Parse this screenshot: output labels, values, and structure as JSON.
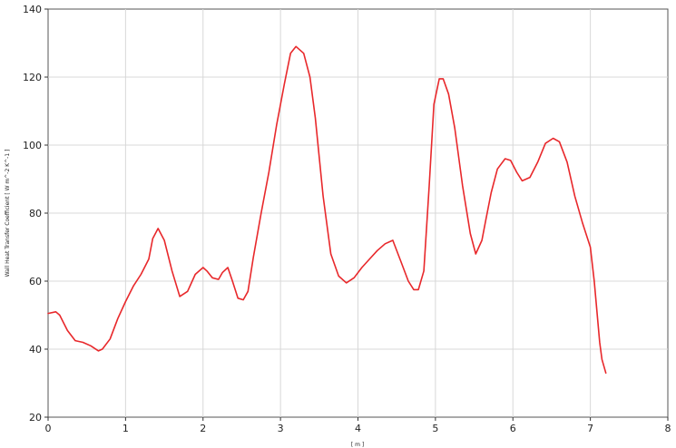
{
  "chart_data": {
    "type": "line",
    "title": "",
    "xlabel": "[ m ]",
    "ylabel": "Wall Heat Transfer Coefficient [ W m^-2 K^-1 ]",
    "xlim": [
      0,
      8
    ],
    "ylim": [
      20,
      140
    ],
    "xticks": [
      0,
      1,
      2,
      3,
      4,
      5,
      6,
      7,
      8
    ],
    "yticks": [
      20,
      40,
      60,
      80,
      100,
      120,
      140
    ],
    "grid": true,
    "series": [
      {
        "color": "#e8282b",
        "x": [
          0.0,
          0.1,
          0.15,
          0.25,
          0.35,
          0.45,
          0.55,
          0.65,
          0.7,
          0.8,
          0.9,
          1.0,
          1.1,
          1.2,
          1.3,
          1.35,
          1.42,
          1.5,
          1.6,
          1.7,
          1.8,
          1.9,
          2.0,
          2.05,
          2.12,
          2.2,
          2.25,
          2.32,
          2.38,
          2.45,
          2.52,
          2.58,
          2.65,
          2.75,
          2.85,
          2.95,
          3.05,
          3.13,
          3.2,
          3.3,
          3.38,
          3.45,
          3.55,
          3.65,
          3.75,
          3.85,
          3.95,
          4.05,
          4.15,
          4.25,
          4.35,
          4.45,
          4.55,
          4.65,
          4.72,
          4.78,
          4.85,
          4.92,
          4.98,
          5.05,
          5.1,
          5.17,
          5.25,
          5.35,
          5.45,
          5.52,
          5.6,
          5.65,
          5.72,
          5.8,
          5.9,
          5.97,
          6.05,
          6.12,
          6.22,
          6.32,
          6.42,
          6.52,
          6.6,
          6.7,
          6.8,
          6.9,
          7.0,
          7.05,
          7.12,
          7.15,
          7.2
        ],
        "y": [
          50.5,
          51.0,
          50.0,
          45.5,
          42.5,
          42.0,
          41.0,
          39.5,
          40.0,
          43.0,
          49.0,
          54.0,
          58.5,
          62.0,
          66.5,
          72.5,
          75.5,
          72.0,
          63.0,
          55.5,
          57.0,
          62.0,
          64.0,
          63.0,
          61.0,
          60.5,
          62.5,
          64.0,
          60.0,
          55.0,
          54.5,
          57.0,
          67.0,
          80.0,
          92.0,
          106.0,
          118.0,
          127.0,
          129.0,
          127.0,
          120.0,
          108.0,
          85.0,
          68.0,
          61.5,
          59.5,
          61.0,
          64.0,
          66.5,
          69.0,
          71.0,
          72.0,
          66.0,
          60.0,
          57.5,
          57.5,
          63.0,
          88.0,
          112.0,
          119.5,
          119.5,
          115.0,
          105.0,
          88.0,
          74.0,
          68.0,
          72.0,
          78.0,
          86.0,
          93.0,
          96.0,
          95.5,
          92.0,
          89.5,
          90.5,
          95.0,
          100.5,
          102.0,
          101.0,
          95.0,
          85.0,
          77.0,
          70.0,
          60.0,
          42.0,
          37.0,
          33.0
        ]
      }
    ]
  }
}
